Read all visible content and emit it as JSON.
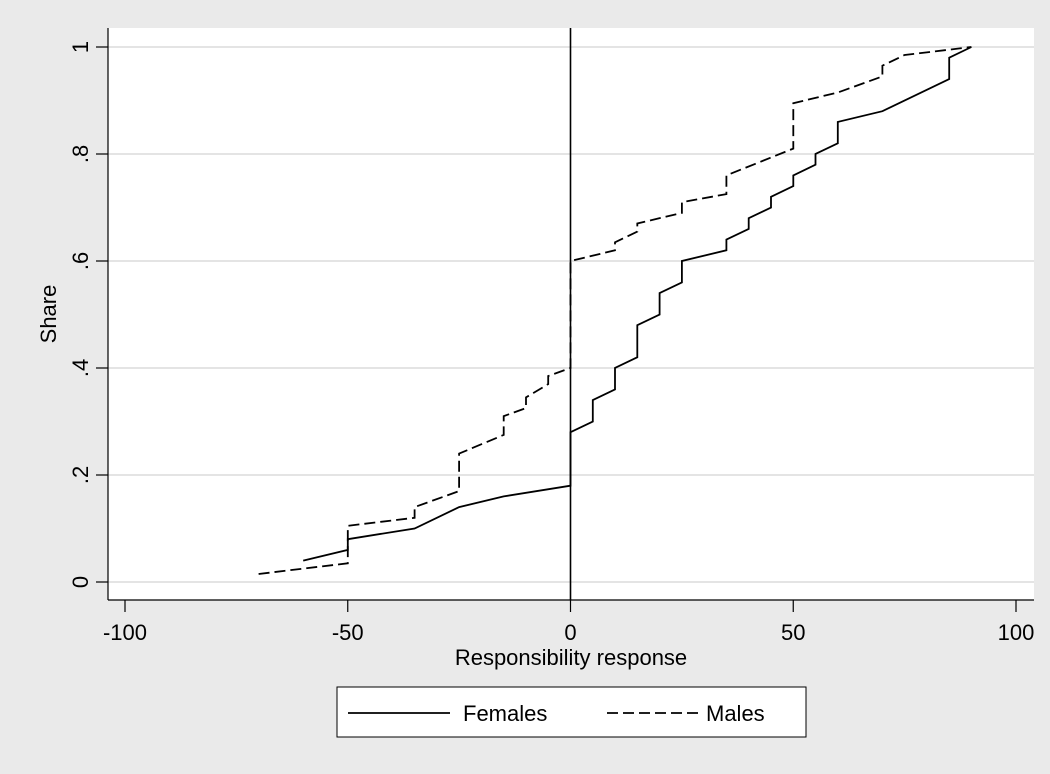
{
  "chart_data": {
    "type": "line",
    "xlabel": "Responsibility response",
    "ylabel": "Share",
    "xlim": [
      -100,
      100
    ],
    "ylim": [
      0,
      1
    ],
    "x_ticks": [
      -100,
      -50,
      0,
      50,
      100
    ],
    "x_tick_labels": [
      "-100",
      "-50",
      "0",
      "50",
      "100"
    ],
    "y_ticks": [
      0,
      0.2,
      0.4,
      0.6,
      0.8,
      1
    ],
    "y_tick_labels": [
      "0",
      ".2",
      ".4",
      ".6",
      ".8",
      "1"
    ],
    "grid": "horizontal",
    "reference_line_x": 0,
    "legend_position": "bottom",
    "series": [
      {
        "name": "Females",
        "style": "solid",
        "color": "#000000",
        "points": [
          [
            -60,
            0.04
          ],
          [
            -50,
            0.06
          ],
          [
            -50,
            0.08
          ],
          [
            -35,
            0.1
          ],
          [
            -25,
            0.14
          ],
          [
            -15,
            0.16
          ],
          [
            0,
            0.18
          ],
          [
            0,
            0.28
          ],
          [
            5,
            0.3
          ],
          [
            5,
            0.34
          ],
          [
            10,
            0.36
          ],
          [
            10,
            0.4
          ],
          [
            15,
            0.42
          ],
          [
            15,
            0.48
          ],
          [
            20,
            0.5
          ],
          [
            20,
            0.54
          ],
          [
            25,
            0.56
          ],
          [
            25,
            0.6
          ],
          [
            35,
            0.62
          ],
          [
            35,
            0.64
          ],
          [
            40,
            0.66
          ],
          [
            40,
            0.68
          ],
          [
            45,
            0.7
          ],
          [
            45,
            0.72
          ],
          [
            50,
            0.74
          ],
          [
            50,
            0.76
          ],
          [
            55,
            0.78
          ],
          [
            55,
            0.8
          ],
          [
            60,
            0.82
          ],
          [
            60,
            0.86
          ],
          [
            70,
            0.88
          ],
          [
            85,
            0.94
          ],
          [
            85,
            0.98
          ],
          [
            90,
            1.0
          ]
        ]
      },
      {
        "name": "Males",
        "style": "dashed",
        "color": "#000000",
        "points": [
          [
            -70,
            0.015
          ],
          [
            -60,
            0.025
          ],
          [
            -50,
            0.035
          ],
          [
            -50,
            0.105
          ],
          [
            -35,
            0.12
          ],
          [
            -35,
            0.14
          ],
          [
            -25,
            0.17
          ],
          [
            -25,
            0.24
          ],
          [
            -15,
            0.275
          ],
          [
            -15,
            0.31
          ],
          [
            -10,
            0.325
          ],
          [
            -10,
            0.345
          ],
          [
            -5,
            0.37
          ],
          [
            -5,
            0.385
          ],
          [
            0,
            0.4
          ],
          [
            0,
            0.6
          ],
          [
            10,
            0.62
          ],
          [
            10,
            0.635
          ],
          [
            15,
            0.655
          ],
          [
            15,
            0.67
          ],
          [
            25,
            0.69
          ],
          [
            25,
            0.71
          ],
          [
            35,
            0.725
          ],
          [
            35,
            0.76
          ],
          [
            50,
            0.81
          ],
          [
            50,
            0.895
          ],
          [
            60,
            0.915
          ],
          [
            70,
            0.945
          ],
          [
            70,
            0.965
          ],
          [
            75,
            0.985
          ],
          [
            90,
            1.0
          ]
        ]
      }
    ]
  }
}
